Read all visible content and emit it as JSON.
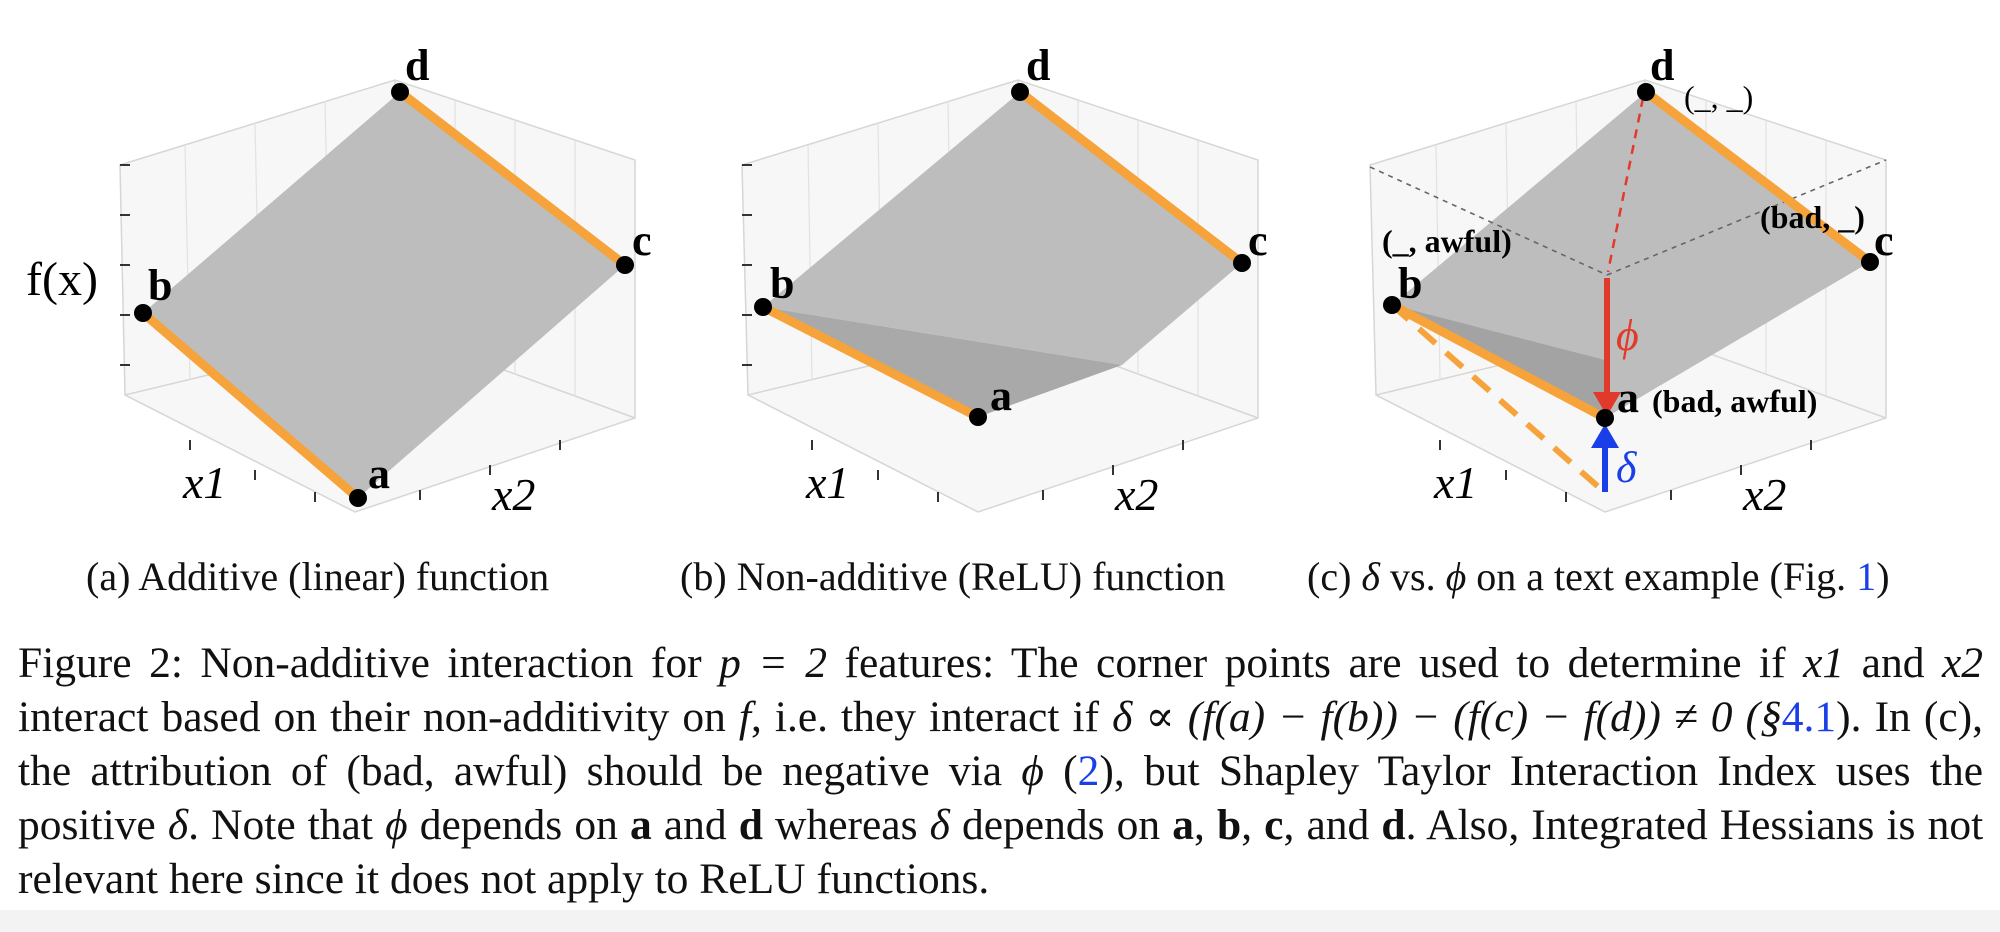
{
  "panels": [
    {
      "id": "a",
      "title": "(a) Additive (linear) function",
      "y_label": "f(x)",
      "x1_label": "x1",
      "x2_label": "x2",
      "corners": {
        "a": "a",
        "b": "b",
        "c": "c",
        "d": "d"
      }
    },
    {
      "id": "b",
      "title": "(b) Non-additive (ReLU) function",
      "x1_label": "x1",
      "x2_label": "x2",
      "corners": {
        "a": "a",
        "b": "b",
        "c": "c",
        "d": "d"
      }
    },
    {
      "id": "c",
      "title_prefix": "(c)",
      "title_delta": "δ",
      "title_vs": "vs.",
      "title_phi": "ϕ",
      "title_suffix": "on a text example (Fig.",
      "title_ref": "1",
      "title_close": ")",
      "x1_label": "x1",
      "x2_label": "x2",
      "corners": {
        "a": "a",
        "b": "b",
        "c": "c",
        "d": "d"
      },
      "annotations": {
        "d": "(_, _)",
        "c": "(bad, _)",
        "b": "(_, awful)",
        "a": "(bad, awful)"
      },
      "phi_label": "ϕ",
      "delta_label": "δ"
    }
  ],
  "caption": {
    "line1_prefix": "Figure 2: Non-additive interaction for",
    "p_eq": "p = 2",
    "line1_mid": "features: The corner points are used to determine if",
    "x1": "x1",
    "line2_start": "and",
    "x2": "x2",
    "line2_mid": "interact based on their non-additivity on",
    "f": "f",
    "line2_ie": ", i.e. they interact if",
    "formula_part1": "δ ∝ (f(a) − f(b)) − (f(c) −",
    "formula_part2": "f(d)) ≠ 0 (§",
    "ref_section": "4.1",
    "line3_after_ref": "). In (c), the attribution of (bad, awful) should be negative via",
    "phi": "ϕ",
    "ref_eq_open": "(",
    "ref_eq": "2",
    "line3_end": "), but Shapley",
    "line4_start": "Taylor Interaction Index uses the positive",
    "delta": "δ",
    "line4_mid": ". Note that",
    "line4_a": "depends on",
    "bold_a": "a",
    "and": "and",
    "bold_d": "d",
    "whereas": "whereas",
    "depends_on": "depends on",
    "line5_b": "b",
    "line5_c": "c",
    "line5_rest": ", and",
    "line5_tail": ". Also, Integrated Hessians is not relevant here since it does not apply to ReLU functions."
  },
  "colors": {
    "surface": "#bdbdbd",
    "edge_orange": "#f5a33a",
    "phi_red": "#e23a2a",
    "delta_blue": "#1a3ee8",
    "link_blue": "#1a3ee8"
  }
}
